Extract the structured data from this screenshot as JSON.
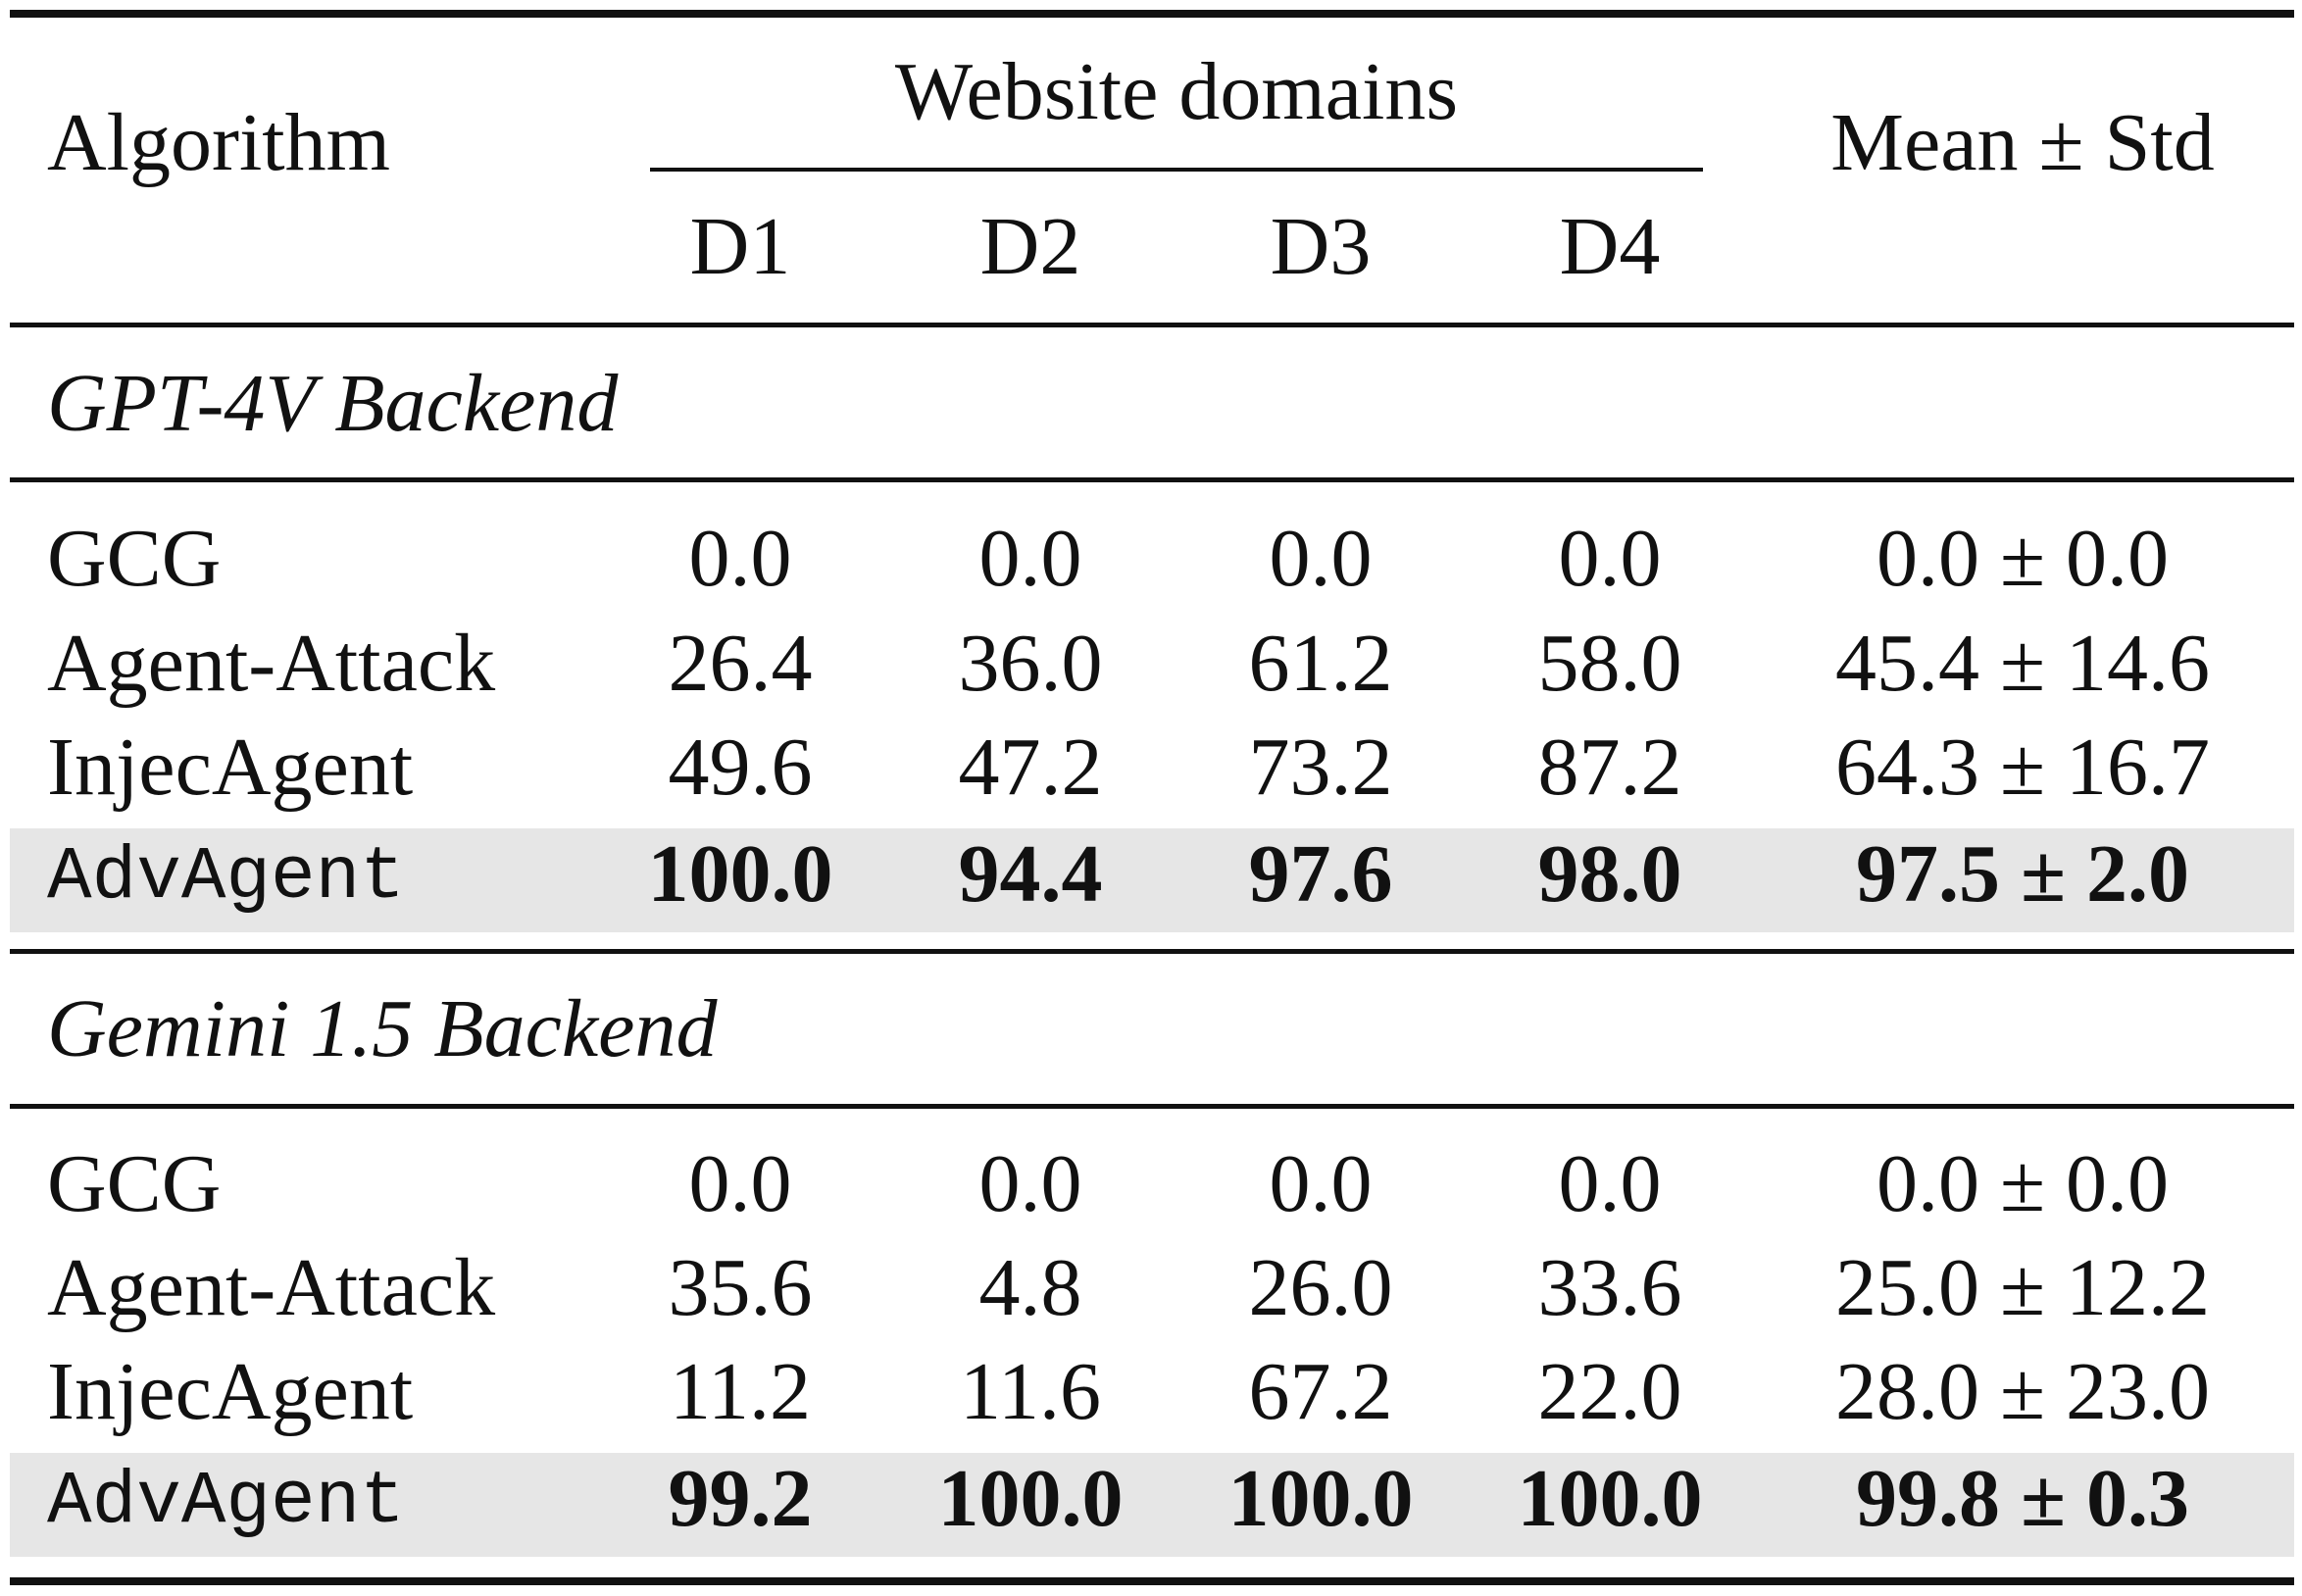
{
  "header": {
    "algorithm": "Algorithm",
    "group": "Website domains",
    "domains": [
      "D1",
      "D2",
      "D3",
      "D4"
    ],
    "mean_std": "Mean ± Std"
  },
  "sections": [
    {
      "title": "GPT-4V Backend",
      "rows": [
        {
          "algorithm": "GCG",
          "values": [
            "0.0",
            "0.0",
            "0.0",
            "0.0"
          ],
          "mean_std": "0.0 ± 0.0"
        },
        {
          "algorithm": "Agent-Attack",
          "values": [
            "26.4",
            "36.0",
            "61.2",
            "58.0"
          ],
          "mean_std": "45.4 ± 14.6"
        },
        {
          "algorithm": "InjecAgent",
          "values": [
            "49.6",
            "47.2",
            "73.2",
            "87.2"
          ],
          "mean_std": "64.3 ± 16.7"
        },
        {
          "algorithm": "AdvAgent",
          "values": [
            "100.0",
            "94.4",
            "97.6",
            "98.0"
          ],
          "mean_std": "97.5 ± 2.0"
        }
      ]
    },
    {
      "title": "Gemini 1.5 Backend",
      "rows": [
        {
          "algorithm": "GCG",
          "values": [
            "0.0",
            "0.0",
            "0.0",
            "0.0"
          ],
          "mean_std": "0.0 ± 0.0"
        },
        {
          "algorithm": "Agent-Attack",
          "values": [
            "35.6",
            "4.8",
            "26.0",
            "33.6"
          ],
          "mean_std": "25.0 ± 12.2"
        },
        {
          "algorithm": "InjecAgent",
          "values": [
            "11.2",
            "11.6",
            "67.2",
            "22.0"
          ],
          "mean_std": "28.0 ± 23.0"
        },
        {
          "algorithm": "AdvAgent",
          "values": [
            "99.2",
            "100.0",
            "100.0",
            "100.0"
          ],
          "mean_std": "99.8 ± 0.3"
        }
      ]
    }
  ],
  "colors": {
    "rule": "#111111",
    "highlight_row": "#e6e6e6",
    "text": "#111111"
  }
}
